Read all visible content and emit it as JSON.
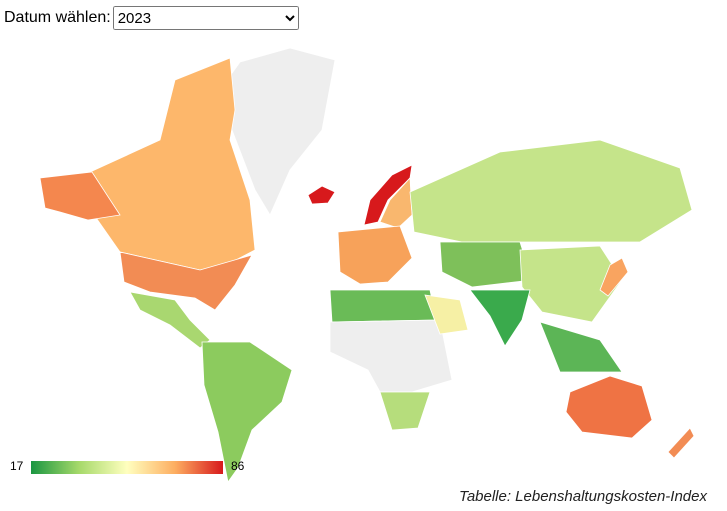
{
  "controls": {
    "label": "Datum wählen:",
    "selected": "2023"
  },
  "legend": {
    "min": 17,
    "max": 86
  },
  "caption": "Tabelle: Lebenshaltungskosten-Index"
}
